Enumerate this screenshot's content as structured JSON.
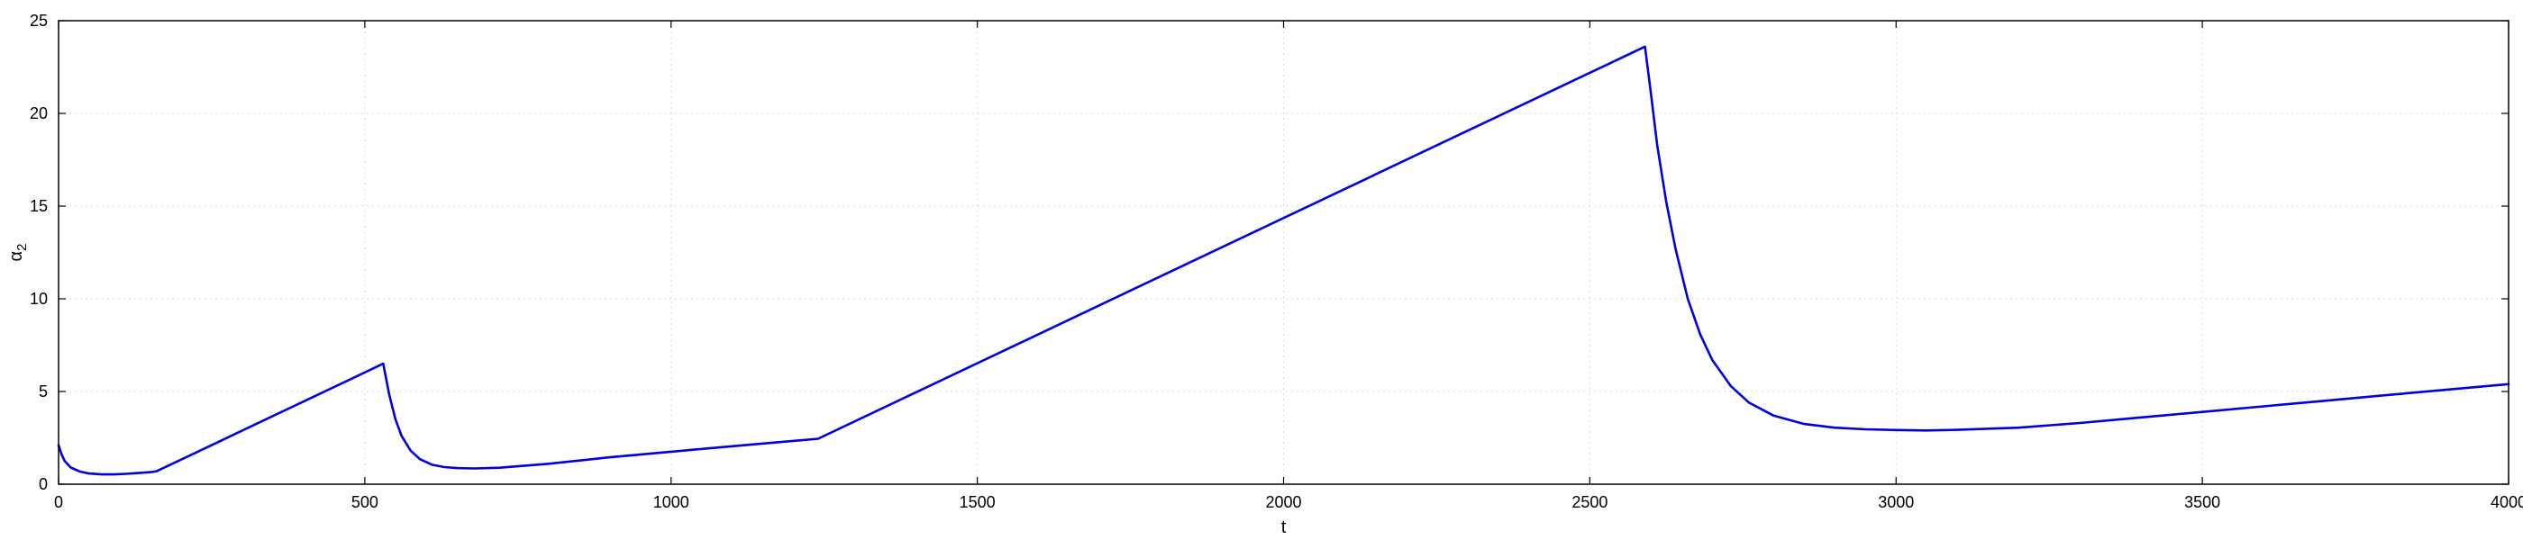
{
  "chart_data": {
    "type": "line",
    "title": "",
    "xlabel": "t",
    "ylabel": "α",
    "ylabel_sub": "2",
    "xlim": [
      0,
      4000
    ],
    "ylim": [
      0,
      25
    ],
    "xticks": [
      0,
      500,
      1000,
      1500,
      2000,
      2500,
      3000,
      3500,
      4000
    ],
    "yticks": [
      0,
      5,
      10,
      15,
      20,
      25
    ],
    "grid": true,
    "line_color": "#0000dd",
    "series": [
      {
        "values": [
          [
            0,
            2.1
          ],
          [
            5,
            1.6
          ],
          [
            10,
            1.25
          ],
          [
            20,
            0.9
          ],
          [
            35,
            0.68
          ],
          [
            50,
            0.58
          ],
          [
            70,
            0.53
          ],
          [
            90,
            0.53
          ],
          [
            110,
            0.56
          ],
          [
            130,
            0.6
          ],
          [
            150,
            0.65
          ],
          [
            160,
            0.7
          ],
          [
            530,
            6.5
          ],
          [
            540,
            4.8
          ],
          [
            550,
            3.5
          ],
          [
            560,
            2.6
          ],
          [
            575,
            1.8
          ],
          [
            590,
            1.35
          ],
          [
            610,
            1.05
          ],
          [
            630,
            0.92
          ],
          [
            650,
            0.87
          ],
          [
            680,
            0.85
          ],
          [
            720,
            0.89
          ],
          [
            800,
            1.1
          ],
          [
            900,
            1.45
          ],
          [
            1000,
            1.75
          ],
          [
            1100,
            2.05
          ],
          [
            1240,
            2.45
          ],
          [
            2590,
            23.6
          ],
          [
            2600,
            21.0
          ],
          [
            2610,
            18.3
          ],
          [
            2625,
            15.2
          ],
          [
            2640,
            12.7
          ],
          [
            2660,
            10.0
          ],
          [
            2680,
            8.1
          ],
          [
            2700,
            6.7
          ],
          [
            2730,
            5.3
          ],
          [
            2760,
            4.4
          ],
          [
            2800,
            3.7
          ],
          [
            2850,
            3.25
          ],
          [
            2900,
            3.05
          ],
          [
            2950,
            2.96
          ],
          [
            3000,
            2.92
          ],
          [
            3050,
            2.9
          ],
          [
            3100,
            2.93
          ],
          [
            3200,
            3.05
          ],
          [
            3300,
            3.3
          ],
          [
            3400,
            3.6
          ],
          [
            3500,
            3.9
          ],
          [
            3600,
            4.2
          ],
          [
            3700,
            4.5
          ],
          [
            3800,
            4.8
          ],
          [
            3900,
            5.1
          ],
          [
            4000,
            5.4
          ]
        ]
      }
    ]
  }
}
